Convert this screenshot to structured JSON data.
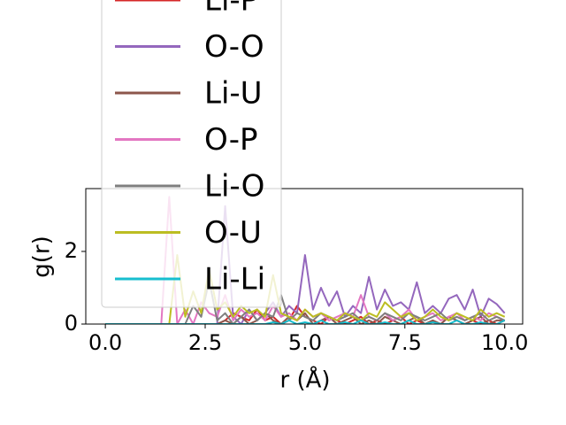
{
  "chart_data": {
    "type": "line",
    "xlabel": "r (Å)",
    "ylabel": "g(r)",
    "x": [
      0,
      0.2,
      0.4,
      0.6,
      0.8,
      1,
      1.2,
      1.4,
      1.6,
      1.8,
      2,
      2.2,
      2.4,
      2.6,
      2.8,
      3,
      3.2,
      3.4,
      3.6,
      3.8,
      4,
      4.2,
      4.4,
      4.6,
      4.8,
      5,
      5.2,
      5.4,
      5.6,
      5.8,
      6,
      6.2,
      6.4,
      6.6,
      6.8,
      7,
      7.2,
      7.4,
      7.6,
      7.8,
      8,
      8.2,
      8.4,
      8.6,
      8.8,
      9,
      9.2,
      9.4,
      9.6,
      9.8,
      10
    ],
    "series": [
      {
        "name": "Li-P",
        "color": "#d62728",
        "values": [
          0,
          0,
          0,
          0,
          0,
          0,
          0,
          0,
          0,
          0,
          0,
          0,
          0,
          0,
          0,
          0.1,
          0.3,
          0.2,
          0.1,
          0.4,
          0.1,
          0.2,
          0,
          0.1,
          0.5,
          0.2,
          0.1,
          0,
          0.2,
          0.1,
          0,
          0.1,
          0.2,
          0,
          0.1,
          0,
          0.1,
          0.2,
          0,
          0.1,
          0,
          0.1,
          0,
          0.2,
          0.1,
          0,
          0.1,
          0,
          0.1,
          0,
          0.1
        ]
      },
      {
        "name": "O-O",
        "color": "#9467bd",
        "values": [
          0,
          0,
          0,
          0,
          0,
          0,
          0,
          0,
          0,
          0,
          0,
          0,
          0,
          0,
          0,
          3.25,
          0.2,
          0,
          0.4,
          0.1,
          0.3,
          0.6,
          0.2,
          0.5,
          0.3,
          1.9,
          0.4,
          1.0,
          0.5,
          0.9,
          0.2,
          0.5,
          0.3,
          1.3,
          0.4,
          0.95,
          0.5,
          0.6,
          0.4,
          1.15,
          0.3,
          0.5,
          0.3,
          0.7,
          0.8,
          0.4,
          0.95,
          0.2,
          0.7,
          0.55,
          0.3
        ]
      },
      {
        "name": "Li-U",
        "color": "#8c564b",
        "values": [
          0,
          0,
          0,
          0,
          0,
          0,
          0,
          0,
          0,
          0,
          0,
          0,
          0,
          0,
          0,
          0.1,
          0,
          0.2,
          0,
          0.1,
          0.3,
          0.1,
          0,
          0.2,
          0.1,
          0.3,
          0,
          0.1,
          0.2,
          0,
          0.1,
          0.2,
          0,
          0.1,
          0,
          0.2,
          0.1,
          0,
          0.1,
          0.2,
          0,
          0.1,
          0,
          0.2,
          0.1,
          0,
          0.1,
          0.2,
          0,
          0.1,
          0.1
        ]
      },
      {
        "name": "O-P",
        "color": "#e377c2",
        "values": [
          0,
          0,
          0,
          0,
          0,
          0,
          0,
          0,
          3.5,
          0,
          0.4,
          0,
          0.6,
          0.3,
          0.2,
          0.8,
          0.1,
          0.4,
          0.2,
          0.3,
          0.1,
          0.5,
          0.2,
          0.3,
          0.1,
          0.4,
          0.2,
          0.3,
          0.1,
          0.2,
          0.3,
          0.2,
          0.8,
          0.2,
          0.1,
          0.3,
          0.1,
          0.2,
          0.4,
          0.1,
          0.2,
          0.3,
          0.1,
          0.2,
          0.3,
          0.1,
          0.2,
          0.1,
          0.3,
          0.2,
          0.1
        ]
      },
      {
        "name": "Li-O",
        "color": "#7f7f7f",
        "values": [
          0,
          0,
          0,
          0,
          0,
          0,
          0,
          0,
          0,
          0,
          0,
          0.5,
          0.2,
          1.2,
          0.1,
          0.3,
          0,
          0.2,
          0.4,
          0.1,
          0.3,
          0.2,
          0.8,
          0.1,
          0.3,
          0.2,
          0.1,
          0.3,
          0.2,
          0.1,
          0.2,
          0.3,
          0.1,
          0.2,
          0.1,
          0.3,
          0.2,
          0.1,
          0.3,
          0.2,
          0.1,
          0.2,
          0.3,
          0.1,
          0.2,
          0.1,
          0.2,
          0.3,
          0.1,
          0.2,
          0.1
        ]
      },
      {
        "name": "O-U",
        "color": "#bcbd22",
        "values": [
          0,
          0,
          0,
          0,
          0,
          0,
          0,
          0,
          0,
          1.9,
          0.2,
          0.9,
          0.3,
          1.5,
          0.4,
          0.6,
          0.2,
          0.5,
          0.3,
          0.4,
          0.2,
          1.35,
          0.3,
          0.2,
          0.1,
          0.4,
          0.2,
          0.3,
          0.2,
          0.1,
          0.3,
          0.2,
          0.1,
          0.3,
          0.2,
          0.6,
          0.4,
          0.2,
          0.3,
          0.1,
          0.2,
          0.4,
          0.2,
          0.1,
          0.3,
          0.2,
          0.1,
          0.4,
          0.2,
          0.3,
          0.2
        ]
      },
      {
        "name": "Li-Li",
        "color": "#17becf",
        "values": [
          0,
          0,
          0,
          0,
          0,
          0,
          0,
          0,
          0,
          0,
          0,
          0,
          0,
          0,
          0,
          0,
          0,
          0,
          0,
          0,
          0,
          0.05,
          0,
          0.1,
          0,
          0.05,
          0,
          0.1,
          0,
          0,
          0.05,
          0,
          0.1,
          0,
          0,
          0.05,
          0,
          0,
          0.1,
          0,
          0,
          0.05,
          0,
          0,
          0.1,
          0,
          0,
          0.05,
          0,
          0,
          0.1
        ]
      }
    ],
    "xlim": [
      -0.49,
      10.45
    ],
    "ylim": [
      0,
      3.73
    ],
    "xticks": [
      {
        "value": 0,
        "label": "0.0"
      },
      2.5,
      {
        "value": 5,
        "label": "5.0"
      },
      7.5,
      {
        "value": 10,
        "label": "10.0"
      }
    ],
    "yticks": [
      0,
      2
    ],
    "grid": false,
    "legend": "upper left"
  }
}
